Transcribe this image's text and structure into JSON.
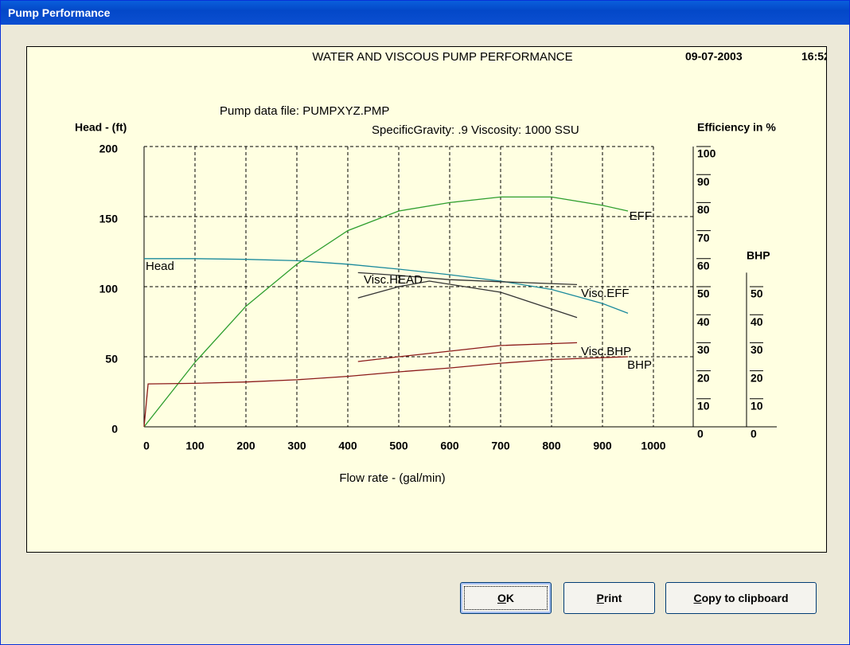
{
  "window": {
    "title": "Pump Performance"
  },
  "buttons": [
    "OK",
    "Print",
    "Copy to clipboard"
  ],
  "chart_data": {
    "type": "line",
    "title": "WATER AND VISCOUS PUMP PERFORMANCE",
    "date": "09-07-2003",
    "time": "16:52",
    "subtitle": "Pump data file:  PUMPXYZ.PMP",
    "conditions": "SpecificGravity:  .9   Viscosity:  1000 SSU",
    "x_label": "Flow rate - (gal/min)",
    "y_label": "Head -  (ft)",
    "y2_label": "Efficiency in %",
    "y3_label": "BHP",
    "xlim": [
      0,
      1000
    ],
    "xticks": [
      0,
      100,
      200,
      300,
      400,
      500,
      600,
      700,
      800,
      900,
      1000
    ],
    "ylim": [
      0,
      200
    ],
    "yticks": [
      0,
      50,
      100,
      150,
      200
    ],
    "y2lim": [
      0,
      100
    ],
    "y2ticks": [
      0,
      10,
      20,
      30,
      40,
      50,
      60,
      70,
      80,
      90,
      100
    ],
    "y3lim": [
      0,
      55
    ],
    "y3ticks": [
      0,
      10,
      20,
      30,
      40,
      50
    ],
    "grid": true,
    "series": [
      {
        "name": "Head",
        "color": "#1a8a9c",
        "label_color": "#1a8a9c",
        "axis": "y",
        "x": [
          0,
          100,
          200,
          300,
          400,
          500,
          600,
          700,
          800,
          900,
          950
        ],
        "values": [
          120,
          120,
          119.5,
          118.5,
          116,
          112.5,
          108.5,
          104,
          98,
          88,
          81
        ]
      },
      {
        "name": "EFF",
        "color": "#2e9e2e",
        "label_color": "#2e9e2e",
        "axis": "y2",
        "x": [
          0,
          100,
          200,
          300,
          400,
          500,
          600,
          700,
          800,
          900,
          950
        ],
        "values": [
          0,
          23,
          43,
          58,
          70,
          77,
          80,
          82,
          82,
          79,
          77
        ]
      },
      {
        "name": "Visc.HEAD",
        "color": "#333333",
        "label_color": "#1a8a9c",
        "axis": "y",
        "x": [
          420,
          500,
          600,
          700,
          850
        ],
        "values": [
          110,
          108,
          105,
          103.5,
          101.5
        ]
      },
      {
        "name": "Visc.EFF",
        "color": "#333333",
        "label_color": "#2e9e2e",
        "axis": "y2",
        "x": [
          420,
          500,
          560,
          700,
          850
        ],
        "values": [
          46,
          50,
          52,
          48,
          39
        ]
      },
      {
        "name": "Visc.BHP",
        "color": "#8b1a1a",
        "label_color": "#8b1a1a",
        "axis": "y3",
        "x": [
          420,
          500,
          600,
          700,
          850
        ],
        "values": [
          23.3,
          25,
          27,
          29,
          30
        ]
      },
      {
        "name": "BHP",
        "color": "#8b1a1a",
        "label_color": "#8b1a1a",
        "axis": "y3",
        "x": [
          0,
          8,
          100,
          200,
          300,
          400,
          500,
          600,
          700,
          800,
          900,
          950
        ],
        "values": [
          0,
          15.3,
          15.5,
          16,
          16.8,
          18,
          19.6,
          21,
          22.7,
          24,
          24.7,
          25
        ]
      }
    ]
  }
}
